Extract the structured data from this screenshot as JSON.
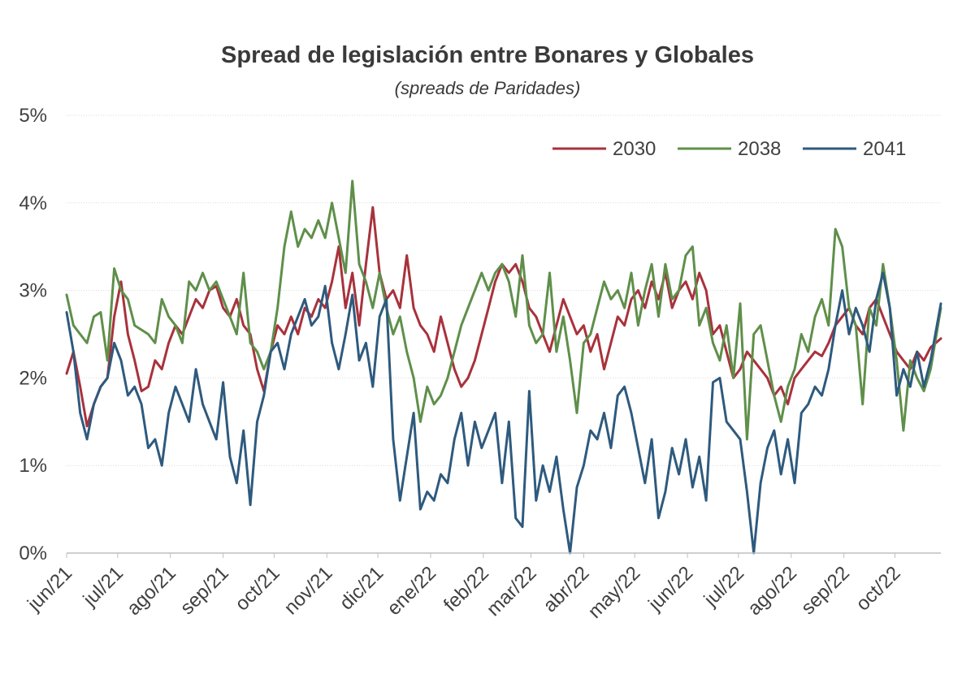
{
  "chart_data": {
    "type": "line",
    "title": "Spread de legislación entre Bonares y Globales",
    "subtitle": "(spreads de Paridades)",
    "x_tick_labels": [
      "jun/21",
      "jul/21",
      "ago/21",
      "sep/21",
      "oct/21",
      "nov/21",
      "dic/21",
      "ene/22",
      "feb/22",
      "mar/22",
      "abr/22",
      "may/22",
      "jun/22",
      "jul/22",
      "ago/22",
      "sep/22",
      "oct/22"
    ],
    "x_ticks": [
      "2021-06-01",
      "2021-07-01",
      "2021-08-01",
      "2021-09-01",
      "2021-10-01",
      "2021-11-01",
      "2021-12-01",
      "2022-01-01",
      "2022-02-01",
      "2022-03-01",
      "2022-04-01",
      "2022-05-01",
      "2022-06-01",
      "2022-07-01",
      "2022-08-01",
      "2022-09-01",
      "2022-10-01"
    ],
    "xlim": [
      "2021-06-01",
      "2022-10-28"
    ],
    "y_tick_labels": [
      "0%",
      "1%",
      "2%",
      "3%",
      "4%",
      "5%"
    ],
    "ylim": [
      0,
      5
    ],
    "grid": true,
    "legend_position": "top-right",
    "series": [
      {
        "name": "2030",
        "color": "#a8323c",
        "x": [
          "2021-06-01",
          "2021-06-05",
          "2021-06-09",
          "2021-06-13",
          "2021-06-17",
          "2021-06-21",
          "2021-06-25",
          "2021-06-29",
          "2021-07-03",
          "2021-07-07",
          "2021-07-11",
          "2021-07-15",
          "2021-07-19",
          "2021-07-23",
          "2021-07-27",
          "2021-07-31",
          "2021-08-04",
          "2021-08-08",
          "2021-08-12",
          "2021-08-16",
          "2021-08-20",
          "2021-08-24",
          "2021-08-28",
          "2021-09-01",
          "2021-09-05",
          "2021-09-09",
          "2021-09-13",
          "2021-09-17",
          "2021-09-21",
          "2021-09-25",
          "2021-09-29",
          "2021-10-03",
          "2021-10-07",
          "2021-10-11",
          "2021-10-15",
          "2021-10-19",
          "2021-10-23",
          "2021-10-27",
          "2021-10-31",
          "2021-11-04",
          "2021-11-08",
          "2021-11-12",
          "2021-11-16",
          "2021-11-20",
          "2021-11-24",
          "2021-11-28",
          "2021-12-02",
          "2021-12-06",
          "2021-12-10",
          "2021-12-14",
          "2021-12-18",
          "2021-12-22",
          "2021-12-26",
          "2021-12-30",
          "2022-01-03",
          "2022-01-07",
          "2022-01-11",
          "2022-01-15",
          "2022-01-19",
          "2022-01-23",
          "2022-01-27",
          "2022-01-31",
          "2022-02-04",
          "2022-02-08",
          "2022-02-12",
          "2022-02-16",
          "2022-02-20",
          "2022-02-24",
          "2022-02-28",
          "2022-03-04",
          "2022-03-08",
          "2022-03-12",
          "2022-03-16",
          "2022-03-20",
          "2022-03-24",
          "2022-03-28",
          "2022-04-01",
          "2022-04-05",
          "2022-04-09",
          "2022-04-13",
          "2022-04-17",
          "2022-04-21",
          "2022-04-25",
          "2022-04-29",
          "2022-05-03",
          "2022-05-07",
          "2022-05-11",
          "2022-05-15",
          "2022-05-19",
          "2022-05-23",
          "2022-05-27",
          "2022-05-31",
          "2022-06-04",
          "2022-06-08",
          "2022-06-12",
          "2022-06-16",
          "2022-06-20",
          "2022-06-24",
          "2022-06-28",
          "2022-07-02",
          "2022-07-06",
          "2022-07-10",
          "2022-07-14",
          "2022-07-18",
          "2022-07-22",
          "2022-07-26",
          "2022-07-30",
          "2022-08-03",
          "2022-08-07",
          "2022-08-11",
          "2022-08-15",
          "2022-08-19",
          "2022-08-23",
          "2022-08-27",
          "2022-08-31",
          "2022-09-04",
          "2022-09-08",
          "2022-09-12",
          "2022-09-16",
          "2022-09-20",
          "2022-09-24",
          "2022-09-28",
          "2022-10-02",
          "2022-10-06",
          "2022-10-10",
          "2022-10-14",
          "2022-10-18",
          "2022-10-22",
          "2022-10-28"
        ],
        "values": [
          2.05,
          2.3,
          1.9,
          1.45,
          1.7,
          1.9,
          2.0,
          2.7,
          3.1,
          2.5,
          2.2,
          1.85,
          1.9,
          2.2,
          2.1,
          2.4,
          2.6,
          2.5,
          2.7,
          2.9,
          2.8,
          3.0,
          3.05,
          2.8,
          2.7,
          2.9,
          2.6,
          2.5,
          2.1,
          1.85,
          2.3,
          2.6,
          2.5,
          2.7,
          2.5,
          2.8,
          2.7,
          2.9,
          2.8,
          3.1,
          3.5,
          2.8,
          3.2,
          2.6,
          3.3,
          3.95,
          3.2,
          2.9,
          3.0,
          2.8,
          3.4,
          2.8,
          2.6,
          2.5,
          2.3,
          2.7,
          2.4,
          2.1,
          1.9,
          2.0,
          2.2,
          2.5,
          2.8,
          3.1,
          3.3,
          3.2,
          3.3,
          3.1,
          2.8,
          2.7,
          2.5,
          2.3,
          2.6,
          2.9,
          2.7,
          2.5,
          2.6,
          2.3,
          2.5,
          2.1,
          2.4,
          2.7,
          2.6,
          2.9,
          3.0,
          2.8,
          3.1,
          2.9,
          3.2,
          2.8,
          3.0,
          3.1,
          2.9,
          3.2,
          3.0,
          2.5,
          2.6,
          2.3,
          2.0,
          2.1,
          2.3,
          2.2,
          2.1,
          2.0,
          1.8,
          1.9,
          1.7,
          2.0,
          2.1,
          2.2,
          2.3,
          2.25,
          2.4,
          2.6,
          2.7,
          2.8,
          2.6,
          2.5,
          2.8,
          2.9,
          2.7,
          2.5,
          2.3,
          2.2,
          2.1,
          2.3,
          2.2,
          2.35,
          2.45
        ]
      },
      {
        "name": "2038",
        "color": "#5f8f4a",
        "x": [
          "2021-06-01",
          "2021-06-05",
          "2021-06-09",
          "2021-06-13",
          "2021-06-17",
          "2021-06-21",
          "2021-06-25",
          "2021-06-29",
          "2021-07-03",
          "2021-07-07",
          "2021-07-11",
          "2021-07-15",
          "2021-07-19",
          "2021-07-23",
          "2021-07-27",
          "2021-07-31",
          "2021-08-04",
          "2021-08-08",
          "2021-08-12",
          "2021-08-16",
          "2021-08-20",
          "2021-08-24",
          "2021-08-28",
          "2021-09-01",
          "2021-09-05",
          "2021-09-09",
          "2021-09-13",
          "2021-09-17",
          "2021-09-21",
          "2021-09-25",
          "2021-09-29",
          "2021-10-03",
          "2021-10-07",
          "2021-10-11",
          "2021-10-15",
          "2021-10-19",
          "2021-10-23",
          "2021-10-27",
          "2021-10-31",
          "2021-11-04",
          "2021-11-08",
          "2021-11-12",
          "2021-11-16",
          "2021-11-20",
          "2021-11-24",
          "2021-11-28",
          "2021-12-02",
          "2021-12-06",
          "2021-12-10",
          "2021-12-14",
          "2021-12-18",
          "2021-12-22",
          "2021-12-26",
          "2021-12-30",
          "2022-01-03",
          "2022-01-07",
          "2022-01-11",
          "2022-01-15",
          "2022-01-19",
          "2022-01-23",
          "2022-01-27",
          "2022-01-31",
          "2022-02-04",
          "2022-02-08",
          "2022-02-12",
          "2022-02-16",
          "2022-02-20",
          "2022-02-24",
          "2022-02-28",
          "2022-03-04",
          "2022-03-08",
          "2022-03-12",
          "2022-03-16",
          "2022-03-20",
          "2022-03-24",
          "2022-03-28",
          "2022-04-01",
          "2022-04-05",
          "2022-04-09",
          "2022-04-13",
          "2022-04-17",
          "2022-04-21",
          "2022-04-25",
          "2022-04-29",
          "2022-05-03",
          "2022-05-07",
          "2022-05-11",
          "2022-05-15",
          "2022-05-19",
          "2022-05-23",
          "2022-05-27",
          "2022-05-31",
          "2022-06-04",
          "2022-06-08",
          "2022-06-12",
          "2022-06-16",
          "2022-06-20",
          "2022-06-24",
          "2022-06-28",
          "2022-07-02",
          "2022-07-06",
          "2022-07-10",
          "2022-07-14",
          "2022-07-18",
          "2022-07-22",
          "2022-07-26",
          "2022-07-30",
          "2022-08-03",
          "2022-08-07",
          "2022-08-11",
          "2022-08-15",
          "2022-08-19",
          "2022-08-23",
          "2022-08-27",
          "2022-08-31",
          "2022-09-04",
          "2022-09-08",
          "2022-09-12",
          "2022-09-16",
          "2022-09-20",
          "2022-09-24",
          "2022-09-28",
          "2022-10-02",
          "2022-10-06",
          "2022-10-10",
          "2022-10-14",
          "2022-10-18",
          "2022-10-22",
          "2022-10-28"
        ],
        "values": [
          2.95,
          2.6,
          2.5,
          2.4,
          2.7,
          2.75,
          2.2,
          3.25,
          3.0,
          2.9,
          2.6,
          2.55,
          2.5,
          2.4,
          2.9,
          2.7,
          2.6,
          2.4,
          3.1,
          3.0,
          3.2,
          3.0,
          3.1,
          2.9,
          2.7,
          2.5,
          3.2,
          2.4,
          2.3,
          2.1,
          2.3,
          2.8,
          3.5,
          3.9,
          3.5,
          3.7,
          3.6,
          3.8,
          3.6,
          4.0,
          3.6,
          3.2,
          4.25,
          3.3,
          3.1,
          2.8,
          3.2,
          2.8,
          2.5,
          2.7,
          2.3,
          2.0,
          1.5,
          1.9,
          1.7,
          1.8,
          2.0,
          2.3,
          2.6,
          2.8,
          3.0,
          3.2,
          3.0,
          3.2,
          3.3,
          3.1,
          2.7,
          3.4,
          2.6,
          2.4,
          2.5,
          3.2,
          2.3,
          2.7,
          2.2,
          1.6,
          2.4,
          2.5,
          2.8,
          3.1,
          2.9,
          3.0,
          2.8,
          3.2,
          2.6,
          3.0,
          3.3,
          2.7,
          3.3,
          2.9,
          3.0,
          3.4,
          3.5,
          2.6,
          2.8,
          2.4,
          2.2,
          2.6,
          2.0,
          2.85,
          1.3,
          2.5,
          2.6,
          2.2,
          1.8,
          1.5,
          1.9,
          2.1,
          2.5,
          2.3,
          2.7,
          2.9,
          2.6,
          3.7,
          3.5,
          2.8,
          2.6,
          1.7,
          2.8,
          2.6,
          3.3,
          2.8,
          2.2,
          1.4,
          2.2,
          2.0,
          1.85,
          2.1,
          2.8
        ]
      },
      {
        "name": "2041",
        "color": "#2e5a7e",
        "x": [
          "2021-06-01",
          "2021-06-05",
          "2021-06-09",
          "2021-06-13",
          "2021-06-17",
          "2021-06-21",
          "2021-06-25",
          "2021-06-29",
          "2021-07-03",
          "2021-07-07",
          "2021-07-11",
          "2021-07-15",
          "2021-07-19",
          "2021-07-23",
          "2021-07-27",
          "2021-07-31",
          "2021-08-04",
          "2021-08-08",
          "2021-08-12",
          "2021-08-16",
          "2021-08-20",
          "2021-08-24",
          "2021-08-28",
          "2021-09-01",
          "2021-09-05",
          "2021-09-09",
          "2021-09-13",
          "2021-09-17",
          "2021-09-21",
          "2021-09-25",
          "2021-09-29",
          "2021-10-03",
          "2021-10-07",
          "2021-10-11",
          "2021-10-15",
          "2021-10-19",
          "2021-10-23",
          "2021-10-27",
          "2021-10-31",
          "2021-11-04",
          "2021-11-08",
          "2021-11-12",
          "2021-11-16",
          "2021-11-20",
          "2021-11-24",
          "2021-11-28",
          "2021-12-02",
          "2021-12-06",
          "2021-12-10",
          "2021-12-14",
          "2021-12-18",
          "2021-12-22",
          "2021-12-26",
          "2021-12-30",
          "2022-01-03",
          "2022-01-07",
          "2022-01-11",
          "2022-01-15",
          "2022-01-19",
          "2022-01-23",
          "2022-01-27",
          "2022-01-31",
          "2022-02-04",
          "2022-02-08",
          "2022-02-12",
          "2022-02-16",
          "2022-02-20",
          "2022-02-24",
          "2022-02-28",
          "2022-03-04",
          "2022-03-08",
          "2022-03-12",
          "2022-03-16",
          "2022-03-20",
          "2022-03-24",
          "2022-03-28",
          "2022-04-01",
          "2022-04-05",
          "2022-04-09",
          "2022-04-13",
          "2022-04-17",
          "2022-04-21",
          "2022-04-25",
          "2022-04-29",
          "2022-05-03",
          "2022-05-07",
          "2022-05-11",
          "2022-05-15",
          "2022-05-19",
          "2022-05-23",
          "2022-05-27",
          "2022-05-31",
          "2022-06-04",
          "2022-06-08",
          "2022-06-12",
          "2022-06-16",
          "2022-06-20",
          "2022-06-24",
          "2022-06-28",
          "2022-07-02",
          "2022-07-06",
          "2022-07-10",
          "2022-07-14",
          "2022-07-18",
          "2022-07-22",
          "2022-07-26",
          "2022-07-30",
          "2022-08-03",
          "2022-08-07",
          "2022-08-11",
          "2022-08-15",
          "2022-08-19",
          "2022-08-23",
          "2022-08-27",
          "2022-08-31",
          "2022-09-04",
          "2022-09-08",
          "2022-09-12",
          "2022-09-16",
          "2022-09-20",
          "2022-09-24",
          "2022-09-28",
          "2022-10-02",
          "2022-10-06",
          "2022-10-10",
          "2022-10-14",
          "2022-10-18",
          "2022-10-22",
          "2022-10-28"
        ],
        "values": [
          2.75,
          2.3,
          1.6,
          1.3,
          1.7,
          1.9,
          2.0,
          2.4,
          2.2,
          1.8,
          1.9,
          1.7,
          1.2,
          1.3,
          1.0,
          1.6,
          1.9,
          1.7,
          1.5,
          2.1,
          1.7,
          1.5,
          1.3,
          1.95,
          1.1,
          0.8,
          1.4,
          0.55,
          1.5,
          1.8,
          2.3,
          2.4,
          2.1,
          2.5,
          2.7,
          2.9,
          2.6,
          2.7,
          3.05,
          2.4,
          2.1,
          2.5,
          2.95,
          2.2,
          2.4,
          1.9,
          2.7,
          2.9,
          1.3,
          0.6,
          1.1,
          1.6,
          0.5,
          0.7,
          0.6,
          0.9,
          0.8,
          1.3,
          1.6,
          1.0,
          1.5,
          1.2,
          1.4,
          1.6,
          0.8,
          1.5,
          0.4,
          0.3,
          1.85,
          0.6,
          1.0,
          0.7,
          1.1,
          0.5,
          0.0,
          0.75,
          1.0,
          1.4,
          1.3,
          1.6,
          1.2,
          1.8,
          1.9,
          1.6,
          1.2,
          0.8,
          1.3,
          0.4,
          0.7,
          1.2,
          0.9,
          1.3,
          0.75,
          1.1,
          0.6,
          1.95,
          2.0,
          1.5,
          1.4,
          1.3,
          0.7,
          0.0,
          0.8,
          1.2,
          1.4,
          0.9,
          1.3,
          0.8,
          1.6,
          1.7,
          1.9,
          1.8,
          2.1,
          2.6,
          3.0,
          2.5,
          2.8,
          2.6,
          2.3,
          2.9,
          3.2,
          2.8,
          1.8,
          2.1,
          1.9,
          2.3,
          1.9,
          2.2,
          2.85
        ]
      }
    ]
  }
}
